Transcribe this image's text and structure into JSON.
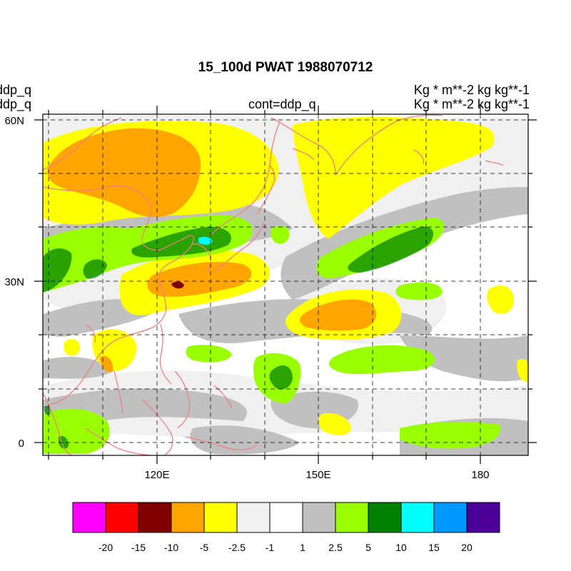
{
  "title": "15_100d PWAT  1988070712",
  "left_labels": [
    "ddp_q",
    "ddp_q"
  ],
  "center_label": "cont=ddp_q",
  "right_labels": [
    "Kg  * m**-2 kg kg**-1",
    "Kg  * m**-2 kg kg**-1"
  ],
  "lat_ticks": [
    {
      "value": 60,
      "label": "60N"
    },
    {
      "value": 30,
      "label": "30N"
    },
    {
      "value": 0,
      "label": "0"
    }
  ],
  "lon_ticks": [
    {
      "value": 120,
      "label": "120E"
    },
    {
      "value": 150,
      "label": "150E"
    },
    {
      "value": 180,
      "label": "180"
    }
  ],
  "map_extent": {
    "lon_min": 100,
    "lon_max": 187,
    "lat_min": -2,
    "lat_max": 61
  },
  "colorbar": {
    "colors": [
      "#ff00ff",
      "#ff0000",
      "#800000",
      "#ffa500",
      "#ffff00",
      "#f0f0f0",
      "#ffffff",
      "#c0c0c0",
      "#99ff00",
      "#008000",
      "#00ffff",
      "#0099ff",
      "#4b0099"
    ],
    "labels": [
      "-20",
      "-15",
      "-10",
      "-5",
      "-2.5",
      "-1",
      "1",
      "2.5",
      "5",
      "10",
      "15",
      "20"
    ]
  },
  "colors": {
    "coastline": "#f08080",
    "frame": "#000000",
    "grid": "#000000"
  }
}
